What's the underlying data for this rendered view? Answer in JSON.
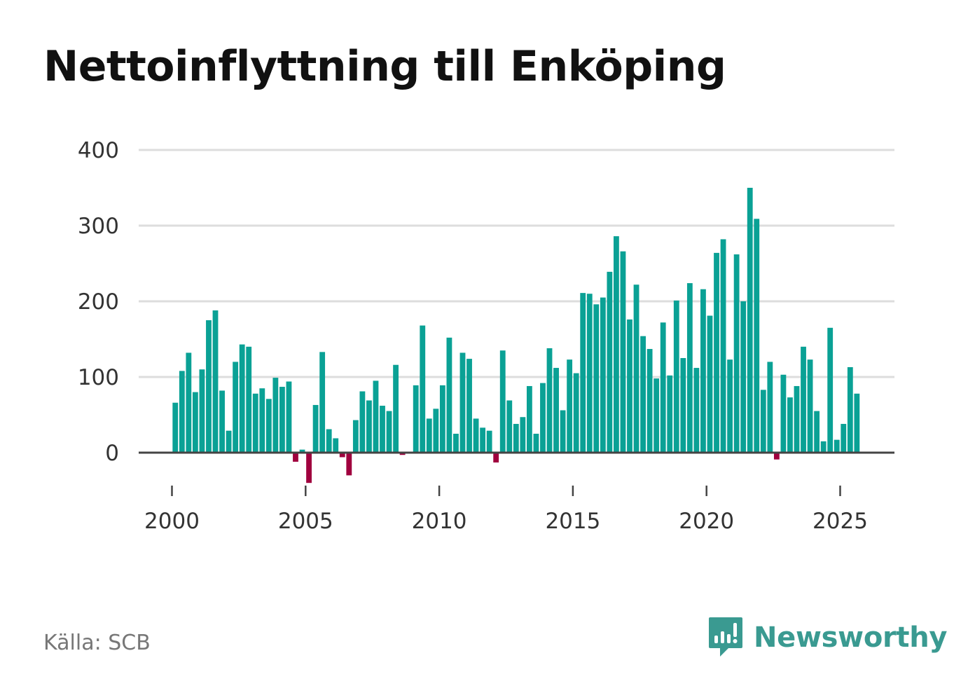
{
  "title": "Nettoinflyttning till Enköping",
  "source": "Källa: SCB",
  "brand": {
    "name": "Newsworthy",
    "icon": "newsworthy-logo-icon"
  },
  "colors": {
    "positive": "#0aa195",
    "negative": "#a0003e",
    "grid": "#dddddd",
    "zero_line": "#444444",
    "text": "#333333"
  },
  "chart_data": {
    "type": "bar",
    "title": "Nettoinflyttning till Enköping",
    "xlabel": "",
    "ylabel": "",
    "ylim": [
      -50,
      400
    ],
    "xlim": [
      2000,
      2027
    ],
    "yticks": [
      0,
      100,
      200,
      300,
      400
    ],
    "xticks": [
      2000,
      2005,
      2010,
      2015,
      2020,
      2025
    ],
    "grid": true,
    "frequency": "quarterly",
    "start_year": 2000,
    "values": [
      66,
      108,
      132,
      80,
      110,
      175,
      188,
      82,
      29,
      120,
      143,
      140,
      78,
      85,
      71,
      99,
      87,
      94,
      -12,
      4,
      -40,
      63,
      133,
      31,
      19,
      -6,
      -30,
      43,
      81,
      69,
      95,
      62,
      55,
      116,
      -3,
      0,
      89,
      168,
      45,
      58,
      89,
      152,
      25,
      132,
      124,
      45,
      33,
      29,
      -13,
      135,
      69,
      38,
      47,
      88,
      25,
      92,
      138,
      112,
      56,
      123,
      105,
      211,
      210,
      196,
      205,
      239,
      286,
      266,
      176,
      222,
      154,
      137,
      98,
      172,
      102,
      201,
      125,
      224,
      112,
      216,
      181,
      264,
      282,
      123,
      262,
      200,
      350,
      309,
      83,
      120,
      -9,
      103,
      73,
      88,
      140,
      123,
      55,
      15,
      165,
      17,
      38,
      113,
      78
    ]
  }
}
